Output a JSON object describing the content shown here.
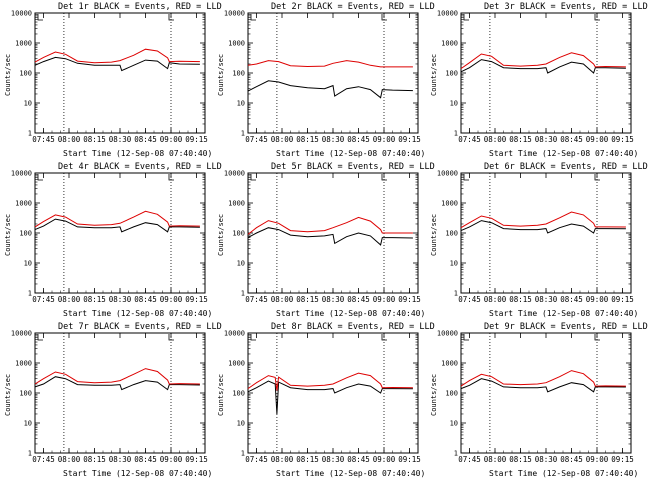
{
  "figure": {
    "legend_text": "BLACK = Events, RED = LLD",
    "start_time_label": "Start Time (12-Sep-08 07:40:40)",
    "ylabel": "Counts/sec",
    "colors": {
      "events": "#000000",
      "lld": "#dd0000"
    }
  },
  "chart_data": [
    {
      "type": "line",
      "title": "Det 1r BLACK = Events, RED = LLD",
      "xlabel": "Start Time (12-Sep-08 07:40:40)",
      "ylabel": "Counts/sec",
      "x_ticks": [
        "07:45",
        "08:00",
        "08:15",
        "08:30",
        "08:45",
        "09:00",
        "09:15"
      ],
      "y_ticks": [
        "1",
        "10",
        "100",
        "1000",
        "10000"
      ],
      "yscale": "log",
      "ylim": [
        1,
        10000
      ],
      "series": [
        {
          "name": "Events",
          "color": "#000000",
          "x": [
            "07:40",
            "07:45",
            "07:52",
            "07:58",
            "08:05",
            "08:15",
            "08:25",
            "08:30",
            "08:31",
            "08:38",
            "08:45",
            "08:52",
            "08:58",
            "08:59",
            "09:05",
            "09:17"
          ],
          "values": [
            180,
            240,
            330,
            300,
            210,
            180,
            180,
            180,
            120,
            180,
            270,
            250,
            140,
            220,
            200,
            195
          ]
        },
        {
          "name": "LLD",
          "color": "#dd0000",
          "x": [
            "07:40",
            "07:45",
            "07:52",
            "07:58",
            "08:05",
            "08:15",
            "08:25",
            "08:30",
            "08:38",
            "08:45",
            "08:52",
            "08:58",
            "08:59",
            "09:05",
            "09:17"
          ],
          "values": [
            230,
            330,
            500,
            420,
            250,
            220,
            230,
            260,
            390,
            620,
            540,
            320,
            240,
            245,
            240
          ]
        }
      ],
      "vlines": [
        "07:57",
        "09:00"
      ]
    },
    {
      "type": "line",
      "title": "Det 2r BLACK = Events, RED = LLD",
      "xlabel": "Start Time (12-Sep-08 07:40:40)",
      "ylabel": "Counts/sec",
      "x_ticks": [
        "07:45",
        "08:00",
        "08:15",
        "08:30",
        "08:45",
        "09:00",
        "09:15"
      ],
      "y_ticks": [
        "1",
        "10",
        "100",
        "1000",
        "10000"
      ],
      "yscale": "log",
      "ylim": [
        1,
        10000
      ],
      "series": [
        {
          "name": "Events",
          "color": "#000000",
          "x": [
            "07:40",
            "07:45",
            "07:52",
            "07:58",
            "08:05",
            "08:15",
            "08:25",
            "08:30",
            "08:31",
            "08:38",
            "08:45",
            "08:52",
            "08:58",
            "08:59",
            "09:05",
            "09:17"
          ],
          "values": [
            25,
            35,
            55,
            50,
            38,
            32,
            30,
            38,
            17,
            30,
            35,
            28,
            15,
            28,
            27,
            26
          ]
        },
        {
          "name": "LLD",
          "color": "#dd0000",
          "x": [
            "07:40",
            "07:45",
            "07:52",
            "07:58",
            "08:05",
            "08:15",
            "08:25",
            "08:30",
            "08:38",
            "08:45",
            "08:52",
            "08:58",
            "08:59",
            "09:05",
            "09:17"
          ],
          "values": [
            180,
            200,
            260,
            240,
            175,
            165,
            170,
            210,
            260,
            230,
            180,
            160,
            160,
            160,
            160
          ]
        }
      ],
      "vlines": [
        "07:57",
        "09:00"
      ]
    },
    {
      "type": "line",
      "title": "Det 3r BLACK = Events, RED = LLD",
      "xlabel": "Start Time (12-Sep-08 07:40:40)",
      "ylabel": "Counts/sec",
      "x_ticks": [
        "07:45",
        "08:00",
        "08:15",
        "08:30",
        "08:45",
        "09:00",
        "09:15"
      ],
      "y_ticks": [
        "1",
        "10",
        "100",
        "1000",
        "10000"
      ],
      "yscale": "log",
      "ylim": [
        1,
        10000
      ],
      "series": [
        {
          "name": "Events",
          "color": "#000000",
          "x": [
            "07:40",
            "07:45",
            "07:52",
            "07:58",
            "08:05",
            "08:15",
            "08:25",
            "08:30",
            "08:31",
            "08:38",
            "08:45",
            "08:52",
            "08:58",
            "08:59",
            "09:05",
            "09:17"
          ],
          "values": [
            110,
            150,
            280,
            240,
            150,
            140,
            140,
            150,
            100,
            160,
            230,
            200,
            100,
            150,
            150,
            145
          ]
        },
        {
          "name": "LLD",
          "color": "#dd0000",
          "x": [
            "07:40",
            "07:45",
            "07:52",
            "07:58",
            "08:05",
            "08:15",
            "08:25",
            "08:30",
            "08:38",
            "08:45",
            "08:52",
            "08:58",
            "08:59",
            "09:05",
            "09:17"
          ],
          "values": [
            140,
            220,
            430,
            360,
            180,
            170,
            180,
            200,
            330,
            470,
            380,
            200,
            160,
            165,
            160
          ]
        }
      ],
      "vlines": [
        "07:57",
        "09:00"
      ]
    },
    {
      "type": "line",
      "title": "Det 4r BLACK = Events, RED = LLD",
      "xlabel": "Start Time (12-Sep-08 07:40:40)",
      "ylabel": "Counts/sec",
      "x_ticks": [
        "07:45",
        "08:00",
        "08:15",
        "08:30",
        "08:45",
        "09:00",
        "09:15"
      ],
      "y_ticks": [
        "1",
        "10",
        "100",
        "1000",
        "10000"
      ],
      "yscale": "log",
      "ylim": [
        1,
        10000
      ],
      "series": [
        {
          "name": "Events",
          "color": "#000000",
          "x": [
            "07:40",
            "07:45",
            "07:52",
            "07:58",
            "08:05",
            "08:15",
            "08:25",
            "08:30",
            "08:31",
            "08:38",
            "08:45",
            "08:52",
            "08:58",
            "08:59",
            "09:05",
            "09:17"
          ],
          "values": [
            130,
            170,
            290,
            250,
            160,
            150,
            150,
            160,
            110,
            160,
            220,
            190,
            110,
            160,
            160,
            155
          ]
        },
        {
          "name": "LLD",
          "color": "#dd0000",
          "x": [
            "07:40",
            "07:45",
            "07:52",
            "07:58",
            "08:05",
            "08:15",
            "08:25",
            "08:30",
            "08:38",
            "08:45",
            "08:52",
            "08:58",
            "08:59",
            "09:05",
            "09:17"
          ],
          "values": [
            160,
            240,
            400,
            340,
            200,
            180,
            190,
            210,
            340,
            530,
            420,
            230,
            170,
            175,
            170
          ]
        }
      ],
      "vlines": [
        "07:57",
        "09:00"
      ]
    },
    {
      "type": "line",
      "title": "Det 5r BLACK = Events, RED = LLD",
      "xlabel": "Start Time (12-Sep-08 07:40:40)",
      "ylabel": "Counts/sec",
      "x_ticks": [
        "07:45",
        "08:00",
        "08:15",
        "08:30",
        "08:45",
        "09:00",
        "09:15"
      ],
      "y_ticks": [
        "1",
        "10",
        "100",
        "1000",
        "10000"
      ],
      "yscale": "log",
      "ylim": [
        1,
        10000
      ],
      "series": [
        {
          "name": "Events",
          "color": "#000000",
          "x": [
            "07:40",
            "07:45",
            "07:52",
            "07:58",
            "08:05",
            "08:15",
            "08:25",
            "08:30",
            "08:31",
            "08:38",
            "08:45",
            "08:52",
            "08:58",
            "08:59",
            "09:05",
            "09:17"
          ],
          "values": [
            70,
            100,
            150,
            130,
            85,
            75,
            80,
            90,
            45,
            75,
            100,
            80,
            40,
            70,
            70,
            68
          ]
        },
        {
          "name": "LLD",
          "color": "#dd0000",
          "x": [
            "07:40",
            "07:45",
            "07:52",
            "07:58",
            "08:05",
            "08:15",
            "08:25",
            "08:30",
            "08:38",
            "08:45",
            "08:52",
            "08:58",
            "08:59",
            "09:05",
            "09:17"
          ],
          "values": [
            90,
            150,
            260,
            210,
            120,
            110,
            120,
            150,
            220,
            330,
            250,
            130,
            100,
            100,
            100
          ]
        }
      ],
      "vlines": [
        "07:57",
        "09:00"
      ]
    },
    {
      "type": "line",
      "title": "Det 6r BLACK = Events, RED = LLD",
      "xlabel": "Start Time (12-Sep-08 07:40:40)",
      "ylabel": "Counts/sec",
      "x_ticks": [
        "07:45",
        "08:00",
        "08:15",
        "08:30",
        "08:45",
        "09:00",
        "09:15"
      ],
      "y_ticks": [
        "1",
        "10",
        "100",
        "1000",
        "10000"
      ],
      "yscale": "log",
      "ylim": [
        1,
        10000
      ],
      "series": [
        {
          "name": "Events",
          "color": "#000000",
          "x": [
            "07:40",
            "07:45",
            "07:52",
            "07:58",
            "08:05",
            "08:15",
            "08:25",
            "08:30",
            "08:31",
            "08:38",
            "08:45",
            "08:52",
            "08:58",
            "08:59",
            "09:05",
            "09:17"
          ],
          "values": [
            120,
            160,
            260,
            220,
            140,
            130,
            130,
            140,
            100,
            150,
            200,
            170,
            100,
            140,
            140,
            138
          ]
        },
        {
          "name": "LLD",
          "color": "#dd0000",
          "x": [
            "07:40",
            "07:45",
            "07:52",
            "07:58",
            "08:05",
            "08:15",
            "08:25",
            "08:30",
            "08:38",
            "08:45",
            "08:52",
            "08:58",
            "08:59",
            "09:05",
            "09:17"
          ],
          "values": [
            150,
            220,
            370,
            310,
            180,
            170,
            180,
            200,
            320,
            500,
            400,
            210,
            160,
            160,
            158
          ]
        }
      ],
      "vlines": [
        "07:57",
        "09:00"
      ]
    },
    {
      "type": "line",
      "title": "Det 7r BLACK = Events, RED = LLD",
      "xlabel": "Start Time (12-Sep-08 07:40:40)",
      "ylabel": "Counts/sec",
      "x_ticks": [
        "07:45",
        "08:00",
        "08:15",
        "08:30",
        "08:45",
        "09:00",
        "09:15"
      ],
      "y_ticks": [
        "1",
        "10",
        "100",
        "1000",
        "10000"
      ],
      "yscale": "log",
      "ylim": [
        1,
        10000
      ],
      "series": [
        {
          "name": "Events",
          "color": "#000000",
          "x": [
            "07:40",
            "07:45",
            "07:52",
            "07:58",
            "08:05",
            "08:15",
            "08:25",
            "08:30",
            "08:31",
            "08:38",
            "08:45",
            "08:52",
            "08:58",
            "08:59",
            "09:05",
            "09:17"
          ],
          "values": [
            160,
            200,
            350,
            300,
            190,
            180,
            180,
            190,
            130,
            190,
            260,
            230,
            130,
            190,
            190,
            185
          ]
        },
        {
          "name": "LLD",
          "color": "#dd0000",
          "x": [
            "07:40",
            "07:45",
            "07:52",
            "07:58",
            "08:05",
            "08:15",
            "08:25",
            "08:30",
            "08:38",
            "08:45",
            "08:52",
            "08:58",
            "08:59",
            "09:05",
            "09:17"
          ],
          "values": [
            200,
            300,
            500,
            420,
            240,
            220,
            230,
            260,
            420,
            650,
            520,
            270,
            200,
            205,
            200
          ]
        }
      ],
      "vlines": [
        "07:57",
        "09:00"
      ]
    },
    {
      "type": "line",
      "title": "Det 8r BLACK = Events, RED = LLD",
      "xlabel": "Start Time (12-Sep-08 07:40:40)",
      "ylabel": "Counts/sec",
      "x_ticks": [
        "07:45",
        "08:00",
        "08:15",
        "08:30",
        "08:45",
        "09:00",
        "09:15"
      ],
      "y_ticks": [
        "1",
        "10",
        "100",
        "1000",
        "10000"
      ],
      "yscale": "log",
      "ylim": [
        1,
        10000
      ],
      "series": [
        {
          "name": "Events",
          "color": "#000000",
          "x": [
            "07:40",
            "07:45",
            "07:52",
            "07:56",
            "07:57",
            "07:58",
            "08:05",
            "08:15",
            "08:25",
            "08:30",
            "08:31",
            "08:38",
            "08:45",
            "08:52",
            "08:58",
            "08:59",
            "09:05",
            "09:17"
          ],
          "values": [
            110,
            150,
            250,
            200,
            20,
            230,
            150,
            130,
            130,
            140,
            100,
            150,
            200,
            170,
            100,
            140,
            140,
            138
          ]
        },
        {
          "name": "LLD",
          "color": "#dd0000",
          "x": [
            "07:40",
            "07:45",
            "07:52",
            "07:56",
            "07:57",
            "07:58",
            "08:05",
            "08:15",
            "08:25",
            "08:30",
            "08:38",
            "08:45",
            "08:52",
            "08:58",
            "08:59",
            "09:05",
            "09:17"
          ],
          "values": [
            140,
            220,
            380,
            330,
            120,
            340,
            180,
            170,
            180,
            200,
            320,
            460,
            380,
            200,
            150,
            152,
            150
          ]
        }
      ],
      "vlines": [
        "07:57",
        "09:00"
      ]
    },
    {
      "type": "line",
      "title": "Det 9r BLACK = Events, RED = LLD",
      "xlabel": "Start Time (12-Sep-08 07:40:40)",
      "ylabel": "Counts/sec",
      "x_ticks": [
        "07:45",
        "08:00",
        "08:15",
        "08:30",
        "08:45",
        "09:00",
        "09:15"
      ],
      "y_ticks": [
        "1",
        "10",
        "100",
        "1000",
        "10000"
      ],
      "yscale": "log",
      "ylim": [
        1,
        10000
      ],
      "series": [
        {
          "name": "Events",
          "color": "#000000",
          "x": [
            "07:40",
            "07:45",
            "07:52",
            "07:58",
            "08:05",
            "08:15",
            "08:25",
            "08:30",
            "08:31",
            "08:38",
            "08:45",
            "08:52",
            "08:58",
            "08:59",
            "09:05",
            "09:17"
          ],
          "values": [
            140,
            180,
            300,
            250,
            160,
            150,
            150,
            160,
            110,
            160,
            220,
            190,
            110,
            160,
            160,
            158
          ]
        },
        {
          "name": "LLD",
          "color": "#dd0000",
          "x": [
            "07:40",
            "07:45",
            "07:52",
            "07:58",
            "08:05",
            "08:15",
            "08:25",
            "08:30",
            "08:38",
            "08:45",
            "08:52",
            "08:58",
            "08:59",
            "09:05",
            "09:17"
          ],
          "values": [
            170,
            260,
            420,
            350,
            200,
            190,
            200,
            220,
            350,
            560,
            440,
            230,
            170,
            172,
            170
          ]
        }
      ],
      "vlines": [
        "07:57",
        "09:00"
      ]
    }
  ]
}
